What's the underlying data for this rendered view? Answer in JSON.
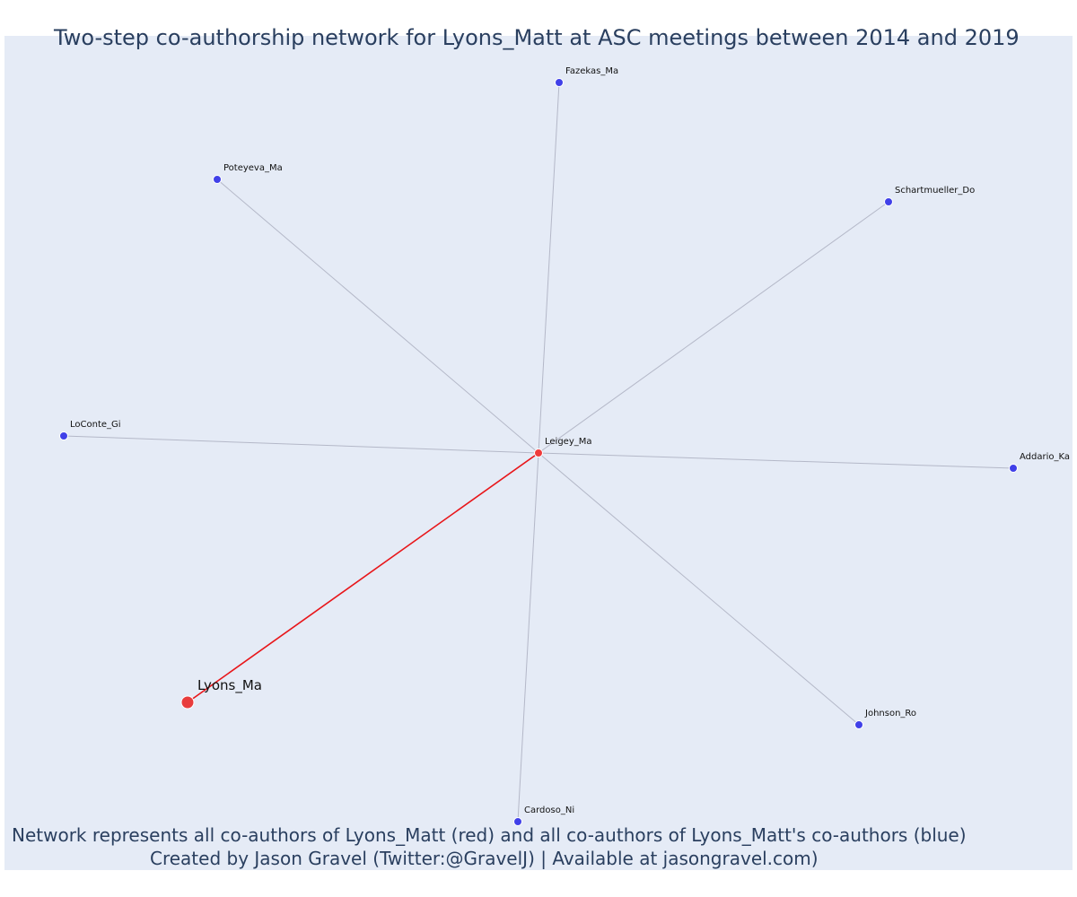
{
  "title": "Two-step co-authorship network for Lyons_Matt at ASC meetings between 2014 and 2019",
  "caption_line1": "Network represents all co-authors of Lyons_Matt (red) and all co-authors of Lyons_Matt's co-authors (blue)",
  "caption_line2": "Created by Jason Gravel (Twitter:@GravelJ) | Available at jasongravel.com)",
  "colors": {
    "background": "#e5ebf6",
    "focal_node": "#e83c3c",
    "coauthor_node": "#ef3b3b",
    "second_step_node": "#4040e8",
    "focal_edge": "#e8161a",
    "other_edge": "#b4b8c8"
  },
  "network": {
    "nodes": [
      {
        "id": "Lyons_Ma",
        "label": "Lyons_Ma",
        "group": "focal"
      },
      {
        "id": "Leigey_Ma",
        "label": "Leigey_Ma",
        "group": "coauthor"
      },
      {
        "id": "Fazekas_Ma",
        "label": "Fazekas_Ma",
        "group": "second_step"
      },
      {
        "id": "Poteyeva_Ma",
        "label": "Poteyeva_Ma",
        "group": "second_step"
      },
      {
        "id": "Schartmueller_Do",
        "label": "Schartmueller_Do",
        "group": "second_step"
      },
      {
        "id": "LoConte_Gi",
        "label": "LoConte_Gi",
        "group": "second_step"
      },
      {
        "id": "Addario_Ka",
        "label": "Addario_Ka",
        "group": "second_step"
      },
      {
        "id": "Johnson_Ro",
        "label": "Johnson_Ro",
        "group": "second_step"
      },
      {
        "id": "Cardoso_Ni",
        "label": "Cardoso_Ni",
        "group": "second_step"
      }
    ],
    "edges": [
      {
        "source": "Lyons_Ma",
        "target": "Leigey_Ma",
        "type": "focal"
      },
      {
        "source": "Leigey_Ma",
        "target": "Fazekas_Ma",
        "type": "other"
      },
      {
        "source": "Leigey_Ma",
        "target": "Poteyeva_Ma",
        "type": "other"
      },
      {
        "source": "Leigey_Ma",
        "target": "Schartmueller_Do",
        "type": "other"
      },
      {
        "source": "Leigey_Ma",
        "target": "LoConte_Gi",
        "type": "other"
      },
      {
        "source": "Leigey_Ma",
        "target": "Addario_Ka",
        "type": "other"
      },
      {
        "source": "Leigey_Ma",
        "target": "Johnson_Ro",
        "type": "other"
      },
      {
        "source": "Leigey_Ma",
        "target": "Cardoso_Ni",
        "type": "other"
      }
    ]
  }
}
